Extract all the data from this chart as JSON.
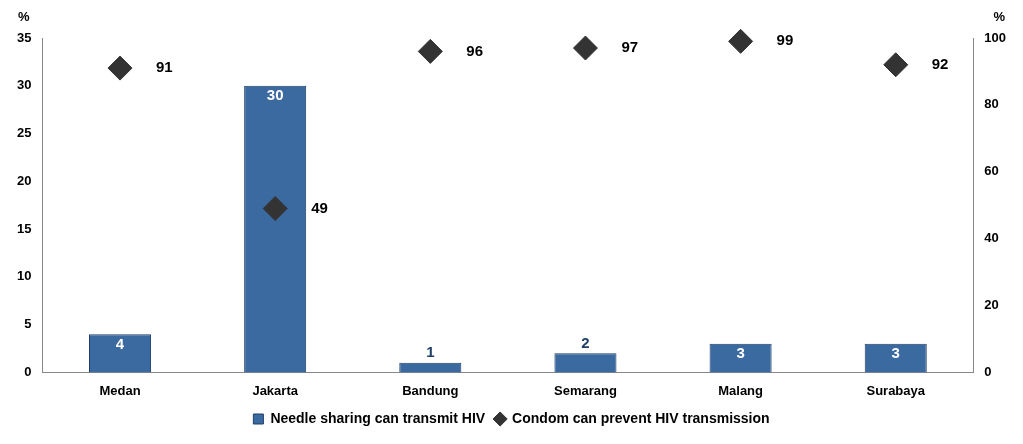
{
  "chart_data": {
    "type": "bar",
    "ylabel": "%",
    "y2label": "%",
    "categories": [
      "Medan",
      "Jakarta",
      "Bandung",
      "Semarang",
      "Malang",
      "Surabaya"
    ],
    "series": [
      {
        "name": "Needle sharing can transmit HIV",
        "color": "#3b6aa0",
        "values": [
          4,
          30,
          1,
          2,
          3,
          3
        ]
      },
      {
        "name": "Condom can prevent HIV transmission",
        "type": "scatter",
        "axis": "y2",
        "color": "#333333",
        "values": [
          91,
          49,
          96,
          97,
          99,
          92
        ]
      }
    ],
    "ylim": [
      0,
      35
    ],
    "yticks": [
      0,
      5,
      10,
      15,
      20,
      25,
      30,
      35
    ],
    "y2lim": [
      0,
      100
    ],
    "y2ticks": [
      0,
      20,
      40,
      60,
      80,
      100
    ],
    "grid": false,
    "legend": "bottom",
    "marker": "diamond",
    "data_labels": true
  }
}
